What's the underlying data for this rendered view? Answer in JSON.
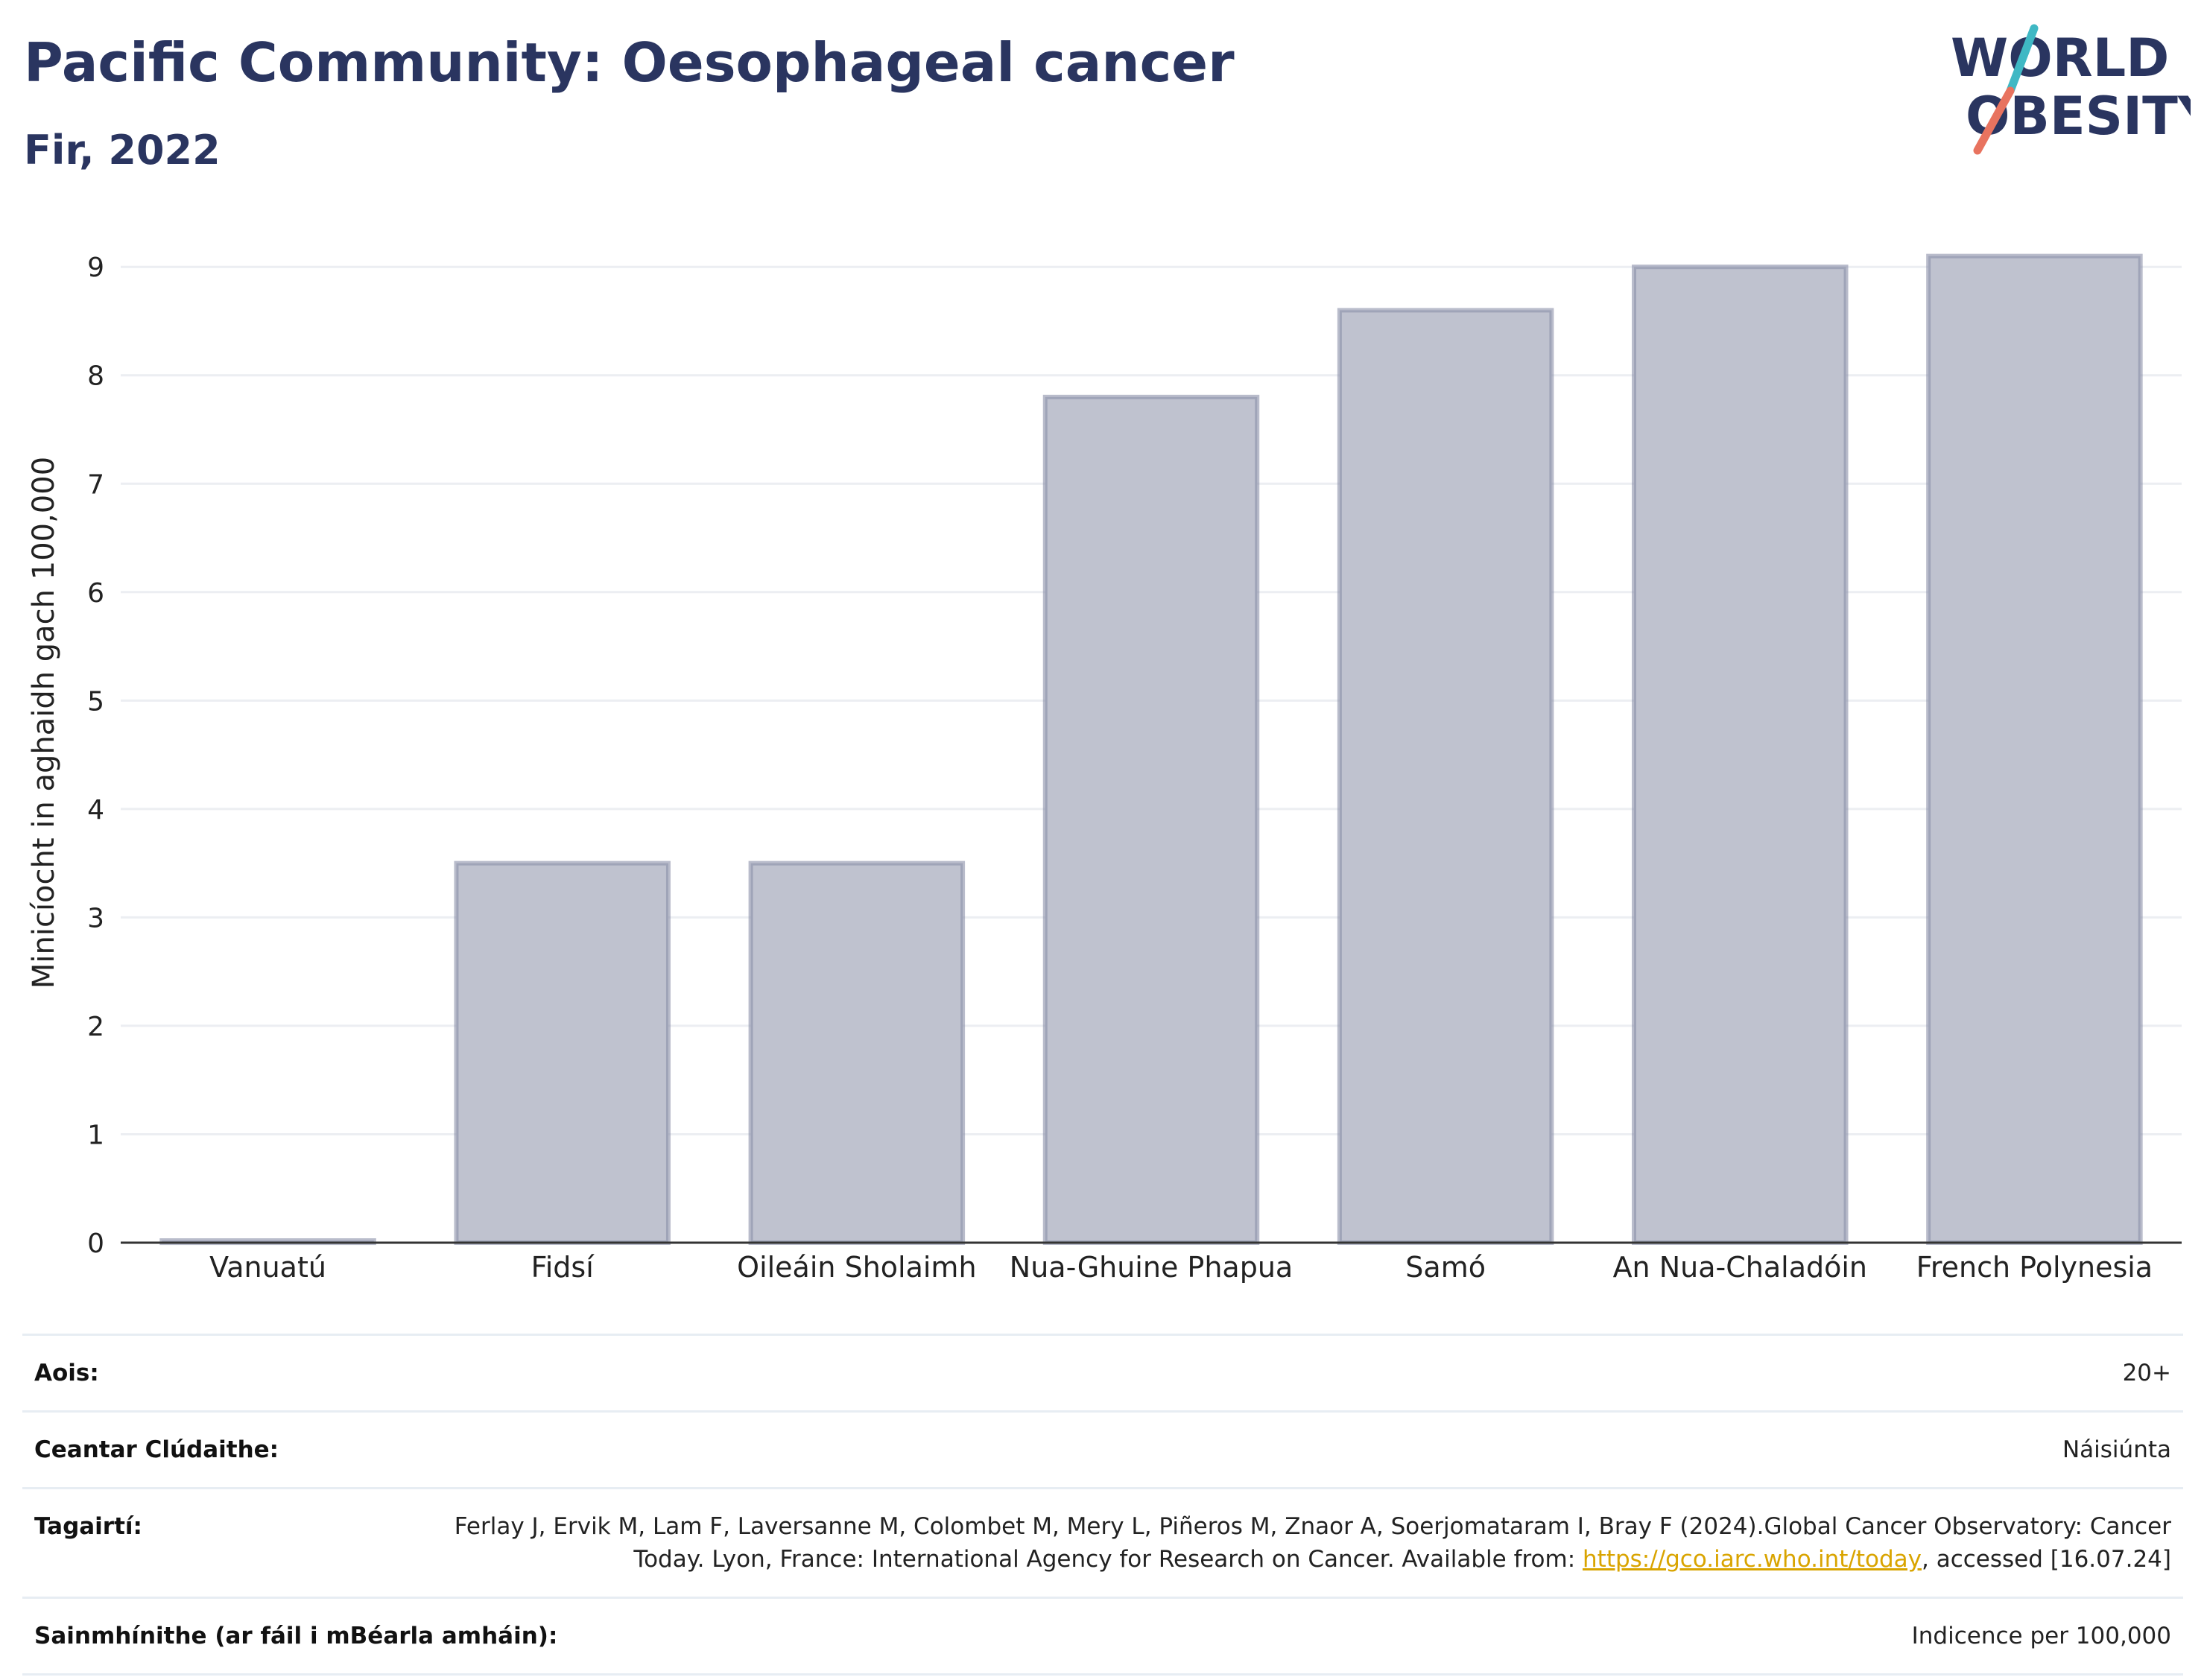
{
  "header": {
    "title": "Pacific Community: Oesophageal cancer",
    "subtitle": "Fir, 2022"
  },
  "logo": {
    "line1": "WORLD",
    "line2": "OBESITY"
  },
  "chart_data": {
    "type": "bar",
    "categories": [
      "Vanuatú",
      "Fidsí",
      "Oileáin Sholaimh",
      "Nua-Ghuine Phapua",
      "Samó",
      "An Nua-Chaladóin",
      "French Polynesia"
    ],
    "values": [
      0.02,
      3.5,
      3.5,
      7.8,
      8.6,
      9.0,
      9.1
    ],
    "ylabel": "Minicíocht in aghaidh gach 100,000",
    "xlabel": "",
    "ylim": [
      0,
      9.4
    ],
    "yticks": [
      0,
      1,
      2,
      3,
      4,
      5,
      6,
      7,
      8,
      9
    ],
    "grid": true,
    "colors": {
      "bar_fill": "#bfc2cf",
      "bar_stroke": "#8a8fa8",
      "grid": "#eceef2",
      "axis": "#333333"
    }
  },
  "meta": {
    "age_label": "Aois:",
    "age_value": "20+",
    "coverage_label": "Ceantar Clúdaithe:",
    "coverage_value": "Náisiúnta",
    "refs_label": "Tagairtí:",
    "refs_text_1": "Ferlay J, Ervik M, Lam F, Laversanne M, Colombet M, Mery L, Piñeros M, Znaor A, Soerjomataram I, Bray F (2024).Global Cancer Observatory: Cancer Today. Lyon, France: International Agency for Research on Cancer. Available from: ",
    "refs_link": "https://gco.iarc.who.int/today",
    "refs_text_2": ", accessed [16.07.24]",
    "definitions_label": "Sainmhínithe (ar fáil i mBéarla amháin):",
    "definitions_value": "Indicence per 100,000"
  },
  "colors": {
    "title": "#2a3560",
    "logo_teal": "#3fb8c4",
    "logo_coral": "#e8735f",
    "link": "#d9a400"
  }
}
